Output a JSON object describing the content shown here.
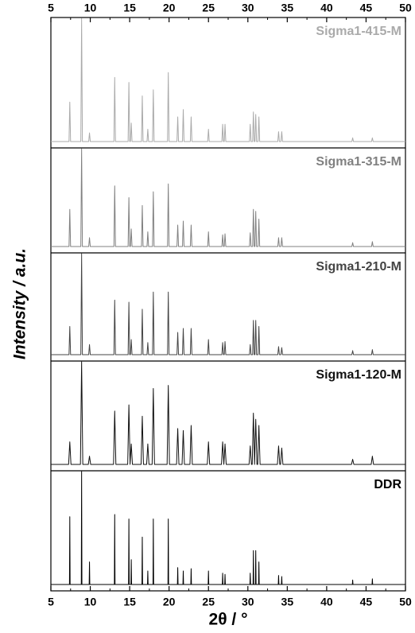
{
  "chart_data": [
    {
      "type": "line",
      "title": "Sigma1-415-M",
      "color": "#aaaaaa",
      "ylabel": "Intensity / a.u.",
      "xlim": [
        5,
        50
      ],
      "ylim": [
        0,
        100
      ],
      "xticks": [
        5,
        10,
        15,
        20,
        25,
        30,
        35,
        40,
        45,
        50
      ],
      "x": [
        5,
        7.3,
        7.4,
        7.5,
        8.8,
        8.9,
        9,
        9.8,
        9.9,
        10,
        13,
        13.1,
        13.2,
        14.8,
        14.9,
        15,
        15.1,
        15.2,
        15.3,
        16.5,
        16.6,
        16.7,
        17.2,
        17.3,
        17.4,
        17.9,
        18,
        18.1,
        19.8,
        19.9,
        20,
        21,
        21.1,
        21.2,
        21.7,
        21.8,
        21.9,
        22.7,
        22.8,
        22.9,
        24.9,
        25,
        25.1,
        26.7,
        26.8,
        26.9,
        27,
        27.1,
        27.2,
        30.2,
        30.3,
        30.4,
        30.6,
        30.7,
        30.8,
        30.9,
        31,
        31.1,
        31.3,
        31.4,
        31.5,
        33.8,
        33.9,
        34,
        34.2,
        34.3,
        34.4,
        43.2,
        43.3,
        43.4,
        45.7,
        45.8,
        45.9,
        50
      ],
      "values": [
        0,
        0,
        32,
        0,
        0,
        100,
        0,
        0,
        7,
        0,
        0,
        52,
        0,
        0,
        48,
        0,
        0,
        15,
        0,
        0,
        37,
        0,
        0,
        10,
        0,
        0,
        42,
        0,
        0,
        56,
        0,
        0,
        20,
        0,
        0,
        26,
        0,
        0,
        20,
        0,
        0,
        10,
        0,
        0,
        14,
        0,
        0,
        14,
        0,
        0,
        14,
        0,
        0,
        24,
        0,
        0,
        22,
        0,
        0,
        20,
        0,
        0,
        8,
        0,
        0,
        8,
        0,
        0,
        3,
        0,
        0,
        3,
        0,
        0
      ]
    },
    {
      "type": "line",
      "title": "Sigma1-315-M",
      "color": "#808080",
      "xlim": [
        5,
        50
      ],
      "ylim": [
        0,
        100
      ],
      "x": [
        5,
        7.3,
        7.4,
        7.5,
        8.8,
        8.9,
        9,
        9.8,
        9.9,
        10,
        13,
        13.1,
        13.2,
        14.8,
        14.9,
        15,
        15.1,
        15.2,
        15.3,
        16.5,
        16.6,
        16.7,
        17.2,
        17.3,
        17.4,
        17.9,
        18,
        18.1,
        19.8,
        19.9,
        20,
        21,
        21.1,
        21.2,
        21.7,
        21.8,
        21.9,
        22.7,
        22.8,
        22.9,
        24.9,
        25,
        25.1,
        26.7,
        26.8,
        26.9,
        27,
        27.1,
        27.2,
        30.2,
        30.3,
        30.4,
        30.6,
        30.7,
        30.8,
        30.9,
        31,
        31.1,
        31.3,
        31.4,
        31.5,
        33.8,
        33.9,
        34,
        34.2,
        34.3,
        34.4,
        43.2,
        43.3,
        43.4,
        45.7,
        45.8,
        45.9,
        50
      ],
      "values": [
        0,
        0,
        38,
        0,
        0,
        100,
        0,
        0,
        9,
        0,
        0,
        62,
        0,
        0,
        50,
        0,
        0,
        18,
        0,
        0,
        42,
        0,
        0,
        15,
        0,
        0,
        56,
        0,
        0,
        64,
        0,
        0,
        22,
        0,
        0,
        26,
        0,
        0,
        22,
        0,
        0,
        15,
        0,
        0,
        12,
        0,
        0,
        13,
        0,
        0,
        14,
        0,
        0,
        38,
        0,
        0,
        36,
        0,
        0,
        28,
        0,
        0,
        9,
        0,
        0,
        9,
        0,
        0,
        4,
        0,
        0,
        5,
        0,
        0
      ]
    },
    {
      "type": "line",
      "title": "Sigma1-210-M",
      "color": "#444444",
      "xlim": [
        5,
        50
      ],
      "ylim": [
        0,
        100
      ],
      "x": [
        5,
        7.3,
        7.4,
        7.5,
        8.8,
        8.9,
        9,
        9.8,
        9.9,
        10,
        13,
        13.1,
        13.2,
        14.8,
        14.9,
        15,
        15.1,
        15.2,
        15.3,
        16.5,
        16.6,
        16.7,
        17.2,
        17.3,
        17.4,
        17.9,
        18,
        18.1,
        19.8,
        19.9,
        20,
        21,
        21.1,
        21.2,
        21.7,
        21.8,
        21.9,
        22.7,
        22.8,
        22.9,
        24.9,
        25,
        25.1,
        26.7,
        26.8,
        26.9,
        27,
        27.1,
        27.2,
        30.2,
        30.3,
        30.4,
        30.6,
        30.7,
        30.8,
        30.9,
        31,
        31.1,
        31.3,
        31.4,
        31.5,
        33.8,
        33.9,
        34,
        34.2,
        34.3,
        34.4,
        43.2,
        43.3,
        43.4,
        45.7,
        45.8,
        45.9,
        50
      ],
      "values": [
        0,
        0,
        28,
        0,
        0,
        100,
        0,
        0,
        10,
        0,
        0,
        54,
        0,
        0,
        52,
        0,
        0,
        15,
        0,
        0,
        45,
        0,
        0,
        12,
        0,
        0,
        62,
        0,
        0,
        62,
        0,
        0,
        22,
        0,
        0,
        26,
        0,
        0,
        26,
        0,
        0,
        15,
        0,
        0,
        12,
        0,
        0,
        13,
        0,
        0,
        10,
        0,
        0,
        34,
        0,
        0,
        34,
        0,
        0,
        28,
        0,
        0,
        8,
        0,
        0,
        7,
        0,
        0,
        4,
        0,
        0,
        5,
        0,
        0
      ]
    },
    {
      "type": "line",
      "title": "Sigma1-120-M",
      "color": "#111111",
      "xlim": [
        5,
        50
      ],
      "ylim": [
        0,
        100
      ],
      "x": [
        5,
        7.25,
        7.4,
        7.55,
        8.75,
        8.9,
        9.05,
        9.75,
        9.9,
        10.05,
        12.95,
        13.1,
        13.25,
        14.75,
        14.9,
        15.05,
        15.05,
        15.2,
        15.35,
        16.45,
        16.6,
        16.75,
        17.15,
        17.3,
        17.45,
        17.85,
        18,
        18.15,
        19.75,
        19.9,
        20.05,
        20.95,
        21.1,
        21.25,
        21.65,
        21.8,
        21.95,
        22.65,
        22.8,
        22.95,
        24.85,
        25,
        25.15,
        26.65,
        26.8,
        26.95,
        26.95,
        27.1,
        27.25,
        30.15,
        30.3,
        30.45,
        30.55,
        30.7,
        30.85,
        30.85,
        31,
        31.15,
        31.25,
        31.4,
        31.55,
        33.75,
        33.9,
        34.05,
        34.15,
        34.3,
        34.45,
        43.15,
        43.3,
        43.45,
        45.65,
        45.8,
        45.95,
        50
      ],
      "values": [
        0,
        0,
        22,
        0,
        0,
        100,
        0,
        0,
        8,
        0,
        0,
        52,
        0,
        0,
        58,
        0,
        0,
        20,
        0,
        0,
        47,
        0,
        0,
        20,
        0,
        0,
        74,
        0,
        0,
        77,
        0,
        0,
        35,
        0,
        0,
        33,
        0,
        0,
        38,
        0,
        0,
        22,
        0,
        0,
        22,
        0,
        0,
        20,
        0,
        0,
        18,
        0,
        0,
        50,
        0,
        0,
        44,
        0,
        0,
        38,
        0,
        0,
        18,
        0,
        0,
        16,
        0,
        0,
        5,
        0,
        0,
        8,
        0,
        0
      ]
    },
    {
      "type": "line",
      "title": "DDR",
      "color": "#000000",
      "xlabel": "2θ / °",
      "xlim": [
        5,
        50
      ],
      "ylim": [
        0,
        100
      ],
      "xticks": [
        5,
        10,
        15,
        20,
        25,
        30,
        35,
        40,
        45,
        50
      ],
      "x": [
        5,
        7.36,
        7.4,
        7.44,
        8.86,
        8.9,
        8.94,
        9.86,
        9.9,
        9.94,
        13.06,
        13.1,
        13.14,
        14.86,
        14.9,
        14.94,
        15.16,
        15.2,
        15.24,
        16.56,
        16.6,
        16.64,
        17.26,
        17.3,
        17.34,
        17.96,
        18,
        18.04,
        19.86,
        19.9,
        19.94,
        21.06,
        21.1,
        21.14,
        21.76,
        21.8,
        21.84,
        22.76,
        22.8,
        22.84,
        24.96,
        25,
        25.04,
        26.76,
        26.8,
        26.84,
        27.06,
        27.1,
        27.14,
        30.26,
        30.3,
        30.34,
        30.66,
        30.7,
        30.74,
        30.96,
        31,
        31.04,
        31.36,
        31.4,
        31.44,
        33.86,
        33.9,
        33.94,
        34.26,
        34.3,
        34.34,
        43.26,
        43.3,
        43.34,
        45.76,
        45.8,
        45.84,
        50
      ],
      "values": [
        0,
        0,
        60,
        0,
        0,
        100,
        0,
        0,
        20,
        0,
        0,
        62,
        0,
        0,
        58,
        0,
        0,
        22,
        0,
        0,
        42,
        0,
        0,
        12,
        0,
        0,
        58,
        0,
        0,
        58,
        0,
        0,
        15,
        0,
        0,
        12,
        0,
        0,
        14,
        0,
        0,
        12,
        0,
        0,
        10,
        0,
        0,
        9,
        0,
        0,
        10,
        0,
        0,
        30,
        0,
        0,
        30,
        0,
        0,
        20,
        0,
        0,
        8,
        0,
        0,
        7,
        0,
        0,
        4,
        0,
        0,
        5,
        0,
        0
      ]
    }
  ]
}
